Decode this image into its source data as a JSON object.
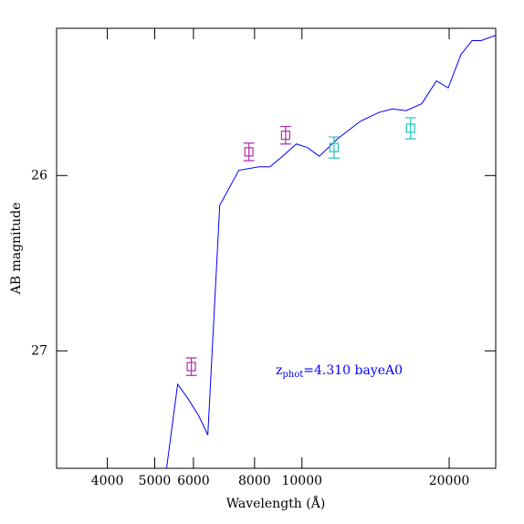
{
  "chart_data": {
    "type": "line",
    "xlabel": "Wavelength (Å)",
    "ylabel": "AB magnitude",
    "xscale": "log",
    "xlim": [
      3150,
      24900
    ],
    "ylim": [
      27.67,
      25.16
    ],
    "xticks": [
      4000,
      5000,
      6000,
      8000,
      10000,
      20000
    ],
    "yticks": [
      26,
      27
    ],
    "color": "#0000ff",
    "x": [
      5287,
      5570,
      5840,
      6150,
      6420,
      6790,
      7430,
      8170,
      8600,
      9130,
      9740,
      10260,
      10850,
      11830,
      13170,
      14360,
      15310,
      16340,
      17580,
      18840,
      19910,
      21140,
      22270,
      23240,
      24900
    ],
    "values": [
      27.67,
      27.19,
      27.27,
      27.37,
      27.48,
      26.17,
      25.97,
      25.95,
      25.95,
      25.89,
      25.82,
      25.84,
      25.89,
      25.79,
      25.69,
      25.64,
      25.62,
      25.63,
      25.59,
      25.46,
      25.5,
      25.31,
      25.23,
      25.23,
      25.2
    ],
    "points": {
      "x": [
        5940,
        7790,
        9260,
        11630,
        16680
      ],
      "values": [
        27.09,
        25.865,
        25.77,
        25.84,
        25.73
      ],
      "errors": [
        0.05,
        0.05,
        0.05,
        0.06,
        0.06
      ],
      "colors": [
        "#b02cb0",
        "#b02cb0",
        "#b02cb0",
        "#20c0c0",
        "#20c0c0"
      ]
    },
    "annotation": [
      "z",
      "phot",
      "=4.310 bayeA0"
    ],
    "annotation_color": "#0000ff"
  }
}
